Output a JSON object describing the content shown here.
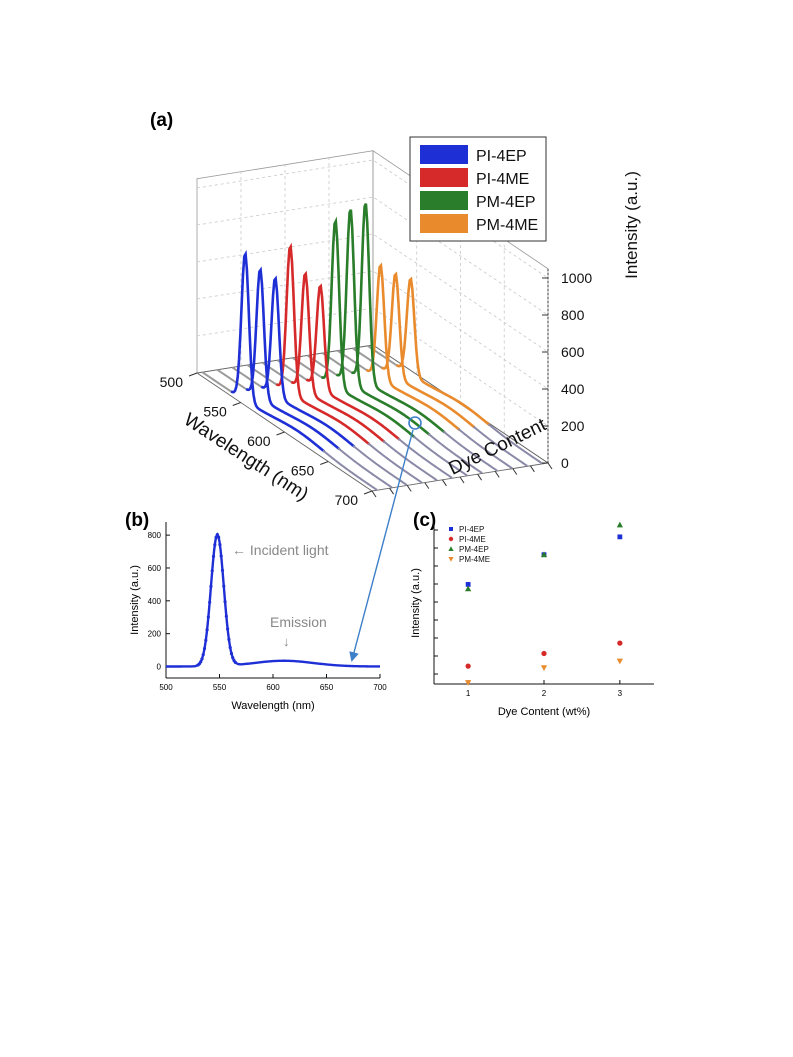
{
  "panels": {
    "a": "(a)",
    "b": "(b)",
    "c": "(c)"
  },
  "colors": {
    "PI-4EP": "#1f2fd6",
    "PI-4ME": "#d62a2a",
    "PM-4EP": "#2a7d2a",
    "PM-4ME": "#e98b2c",
    "grey": "#9a9a9a",
    "arrow": "#3d7fc9"
  },
  "chart_data": [
    {
      "id": "a",
      "type": "line",
      "subtype": "3d-waterfall",
      "xlabel": "Wavelength (nm)",
      "ylabel": "Dye Content",
      "zlabel": "Intensity (a.u.)",
      "x_ticks": [
        "500",
        "550",
        "600",
        "650",
        "700"
      ],
      "z_ticks": [
        "0",
        "200",
        "400",
        "600",
        "800",
        "1000"
      ],
      "xlim": [
        500,
        700
      ],
      "zlim": [
        0,
        1050
      ],
      "legend": {
        "placement": "top-right",
        "entries": [
          "PI-4EP",
          "PI-4ME",
          "PM-4EP",
          "PM-4ME"
        ]
      },
      "series": [
        {
          "name": "PI-4EP",
          "peak_wavelength": 549,
          "peaks": [
            800,
            700,
            640
          ]
        },
        {
          "name": "PI-4ME",
          "peak_wavelength": 549,
          "peaks": [
            800,
            640,
            560
          ]
        },
        {
          "name": "PM-4EP",
          "peak_wavelength": 549,
          "peaks": [
            900,
            950,
            970
          ]
        },
        {
          "name": "PM-4ME",
          "peak_wavelength": 549,
          "peaks": [
            620,
            560,
            520
          ]
        }
      ]
    },
    {
      "id": "b",
      "type": "line",
      "xlabel": "Wavelength (nm)",
      "ylabel": "Intensity (a.u.)",
      "x_ticks": [
        "500",
        "550",
        "600",
        "650",
        "700"
      ],
      "y_ticks": [
        "0",
        "200",
        "400",
        "600",
        "800"
      ],
      "xlim": [
        500,
        700
      ],
      "ylim": [
        -70,
        880
      ],
      "peak": {
        "x": 548,
        "y": 800,
        "width": 6
      },
      "emission": {
        "x": 610,
        "y": 35,
        "width": 28
      },
      "annotations": [
        "← Incident light",
        "Emission",
        "↓"
      ]
    },
    {
      "id": "c",
      "type": "scatter",
      "xlabel": "Dye Content (wt%)",
      "ylabel": "Intensity (a.u.)",
      "x_ticks": [
        "1",
        "2",
        "3"
      ],
      "xlim": [
        0.55,
        3.45
      ],
      "ylim": [
        -30,
        1060
      ],
      "legend": {
        "placement": "top-left",
        "entries": [
          "PI-4EP",
          "PI-4ME",
          "PM-4EP",
          "PM-4ME"
        ]
      },
      "series": [
        {
          "name": "PI-4EP",
          "marker": "square",
          "x": [
            1,
            2,
            3
          ],
          "y": [
            640,
            840,
            960
          ]
        },
        {
          "name": "PI-4ME",
          "marker": "circle",
          "x": [
            1,
            2,
            3
          ],
          "y": [
            90,
            175,
            245
          ]
        },
        {
          "name": "PM-4EP",
          "marker": "triangle-up",
          "x": [
            1,
            2,
            3
          ],
          "y": [
            610,
            840,
            1040
          ]
        },
        {
          "name": "PM-4ME",
          "marker": "triangle-down",
          "x": [
            1,
            2,
            3
          ],
          "y": [
            -20,
            80,
            125
          ]
        }
      ]
    }
  ]
}
